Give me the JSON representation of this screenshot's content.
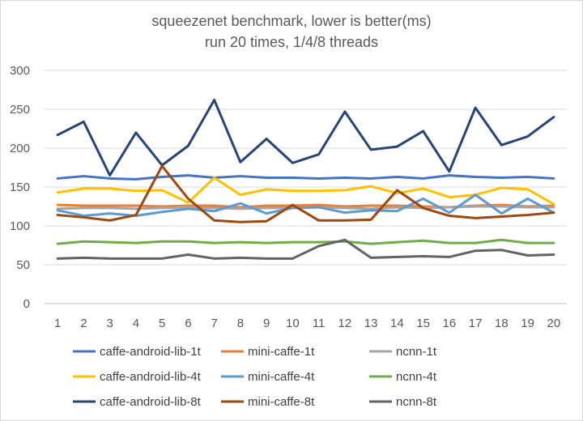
{
  "chart_data": {
    "type": "line",
    "title": "squeezenet benchmark, lower is better(ms)",
    "subtitle": "run 20 times, 1/4/8 threads",
    "xlabel": "",
    "ylabel": "",
    "ylim": [
      0,
      300
    ],
    "yticks": [
      0,
      50,
      100,
      150,
      200,
      250,
      300
    ],
    "grid": true,
    "legend_position": "bottom",
    "categories": [
      "1",
      "2",
      "3",
      "4",
      "5",
      "6",
      "7",
      "8",
      "9",
      "10",
      "11",
      "12",
      "13",
      "14",
      "15",
      "16",
      "17",
      "18",
      "19",
      "20"
    ],
    "series": [
      {
        "name": "caffe-android-lib-1t",
        "color": "#4472C4",
        "values": [
          161,
          164,
          161,
          160,
          163,
          165,
          162,
          164,
          162,
          162,
          161,
          162,
          161,
          163,
          161,
          165,
          163,
          162,
          163,
          161
        ]
      },
      {
        "name": "mini-caffe-1t",
        "color": "#ED7D31",
        "values": [
          127,
          126,
          126,
          126,
          125,
          126,
          126,
          124,
          126,
          126,
          127,
          125,
          126,
          126,
          125,
          124,
          126,
          127,
          125,
          126
        ]
      },
      {
        "name": "ncnn-1t",
        "color": "#A5A5A5",
        "values": [
          122,
          123,
          123,
          122,
          123,
          124,
          123,
          122,
          123,
          123,
          124,
          123,
          122,
          124,
          123,
          124,
          125,
          125,
          124,
          124
        ]
      },
      {
        "name": "caffe-android-lib-4t",
        "color": "#FFC000",
        "values": [
          143,
          148,
          148,
          145,
          146,
          130,
          162,
          140,
          147,
          145,
          145,
          146,
          151,
          142,
          148,
          137,
          140,
          149,
          147,
          128
        ]
      },
      {
        "name": "mini-caffe-4t",
        "color": "#5B9BD5",
        "values": [
          120,
          113,
          116,
          113,
          118,
          122,
          119,
          129,
          116,
          123,
          124,
          117,
          120,
          119,
          135,
          117,
          140,
          116,
          135,
          117
        ]
      },
      {
        "name": "ncnn-4t",
        "color": "#70AD47",
        "values": [
          77,
          80,
          79,
          78,
          80,
          80,
          78,
          79,
          78,
          79,
          79,
          80,
          77,
          79,
          81,
          78,
          78,
          82,
          78,
          78
        ]
      },
      {
        "name": "caffe-android-lib-8t",
        "color": "#264478",
        "values": [
          217,
          234,
          165,
          220,
          178,
          203,
          262,
          182,
          212,
          181,
          192,
          247,
          198,
          202,
          222,
          170,
          252,
          204,
          215,
          240
        ]
      },
      {
        "name": "mini-caffe-8t",
        "color": "#9E480E",
        "values": [
          114,
          111,
          107,
          114,
          177,
          135,
          107,
          105,
          106,
          127,
          107,
          107,
          108,
          146,
          123,
          113,
          110,
          112,
          114,
          117
        ]
      },
      {
        "name": "ncnn-8t",
        "color": "#636363",
        "values": [
          58,
          59,
          58,
          58,
          58,
          63,
          58,
          59,
          58,
          58,
          74,
          82,
          59,
          60,
          61,
          60,
          68,
          69,
          62,
          63
        ]
      }
    ]
  }
}
